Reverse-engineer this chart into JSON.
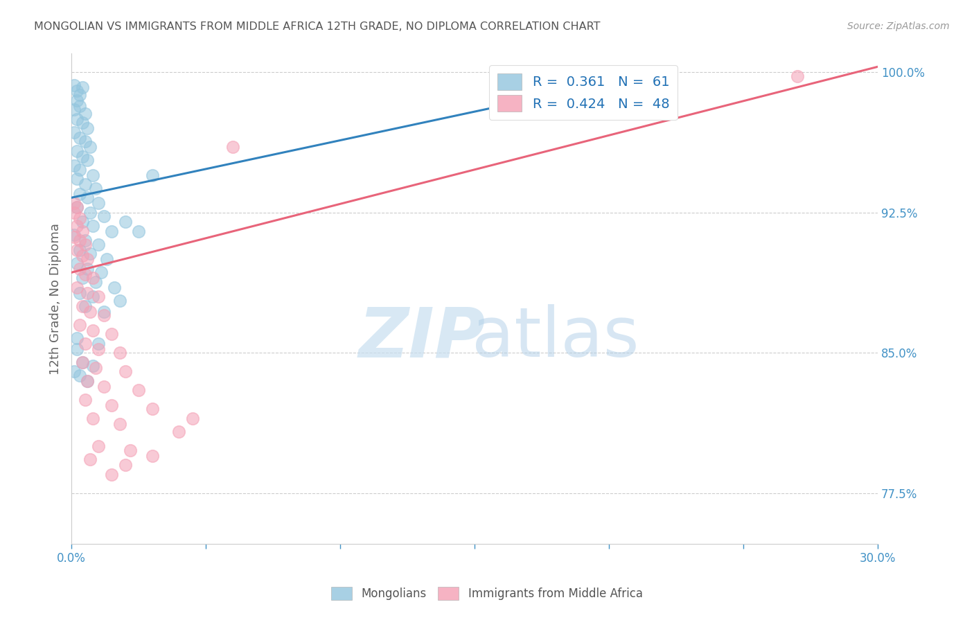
{
  "title": "MONGOLIAN VS IMMIGRANTS FROM MIDDLE AFRICA 12TH GRADE, NO DIPLOMA CORRELATION CHART",
  "source": "Source: ZipAtlas.com",
  "ylabel": "12th Grade, No Diploma",
  "blue_color": "#92c5de",
  "pink_color": "#f4a0b5",
  "blue_line_color": "#3182bd",
  "pink_line_color": "#e8647a",
  "title_color": "#555555",
  "source_color": "#999999",
  "axis_color": "#cccccc",
  "right_label_color": "#4292c6",
  "legend_text_color": "#2171b5",
  "blue_line": [
    [
      0.0,
      0.933
    ],
    [
      0.225,
      1.002
    ]
  ],
  "pink_line": [
    [
      0.0,
      0.893
    ],
    [
      0.3,
      1.003
    ]
  ],
  "blue_scatter": [
    [
      0.001,
      0.993
    ],
    [
      0.002,
      0.99
    ],
    [
      0.003,
      0.988
    ],
    [
      0.004,
      0.992
    ],
    [
      0.002,
      0.985
    ],
    [
      0.003,
      0.982
    ],
    [
      0.001,
      0.98
    ],
    [
      0.005,
      0.978
    ],
    [
      0.002,
      0.975
    ],
    [
      0.004,
      0.973
    ],
    [
      0.006,
      0.97
    ],
    [
      0.001,
      0.968
    ],
    [
      0.003,
      0.965
    ],
    [
      0.005,
      0.963
    ],
    [
      0.007,
      0.96
    ],
    [
      0.002,
      0.958
    ],
    [
      0.004,
      0.955
    ],
    [
      0.006,
      0.953
    ],
    [
      0.001,
      0.95
    ],
    [
      0.003,
      0.948
    ],
    [
      0.008,
      0.945
    ],
    [
      0.002,
      0.943
    ],
    [
      0.005,
      0.94
    ],
    [
      0.009,
      0.938
    ],
    [
      0.003,
      0.935
    ],
    [
      0.006,
      0.933
    ],
    [
      0.01,
      0.93
    ],
    [
      0.002,
      0.928
    ],
    [
      0.007,
      0.925
    ],
    [
      0.012,
      0.923
    ],
    [
      0.004,
      0.92
    ],
    [
      0.008,
      0.918
    ],
    [
      0.015,
      0.915
    ],
    [
      0.001,
      0.913
    ],
    [
      0.005,
      0.91
    ],
    [
      0.01,
      0.908
    ],
    [
      0.003,
      0.905
    ],
    [
      0.007,
      0.903
    ],
    [
      0.013,
      0.9
    ],
    [
      0.002,
      0.898
    ],
    [
      0.006,
      0.895
    ],
    [
      0.011,
      0.893
    ],
    [
      0.004,
      0.89
    ],
    [
      0.009,
      0.888
    ],
    [
      0.016,
      0.885
    ],
    [
      0.003,
      0.882
    ],
    [
      0.008,
      0.88
    ],
    [
      0.018,
      0.878
    ],
    [
      0.005,
      0.875
    ],
    [
      0.012,
      0.872
    ],
    [
      0.002,
      0.858
    ],
    [
      0.01,
      0.855
    ],
    [
      0.004,
      0.845
    ],
    [
      0.008,
      0.843
    ],
    [
      0.001,
      0.84
    ],
    [
      0.003,
      0.838
    ],
    [
      0.006,
      0.835
    ],
    [
      0.002,
      0.852
    ],
    [
      0.02,
      0.92
    ],
    [
      0.025,
      0.915
    ],
    [
      0.03,
      0.945
    ]
  ],
  "pink_scatter": [
    [
      0.001,
      0.93
    ],
    [
      0.002,
      0.928
    ],
    [
      0.001,
      0.925
    ],
    [
      0.003,
      0.922
    ],
    [
      0.002,
      0.918
    ],
    [
      0.004,
      0.915
    ],
    [
      0.001,
      0.912
    ],
    [
      0.003,
      0.91
    ],
    [
      0.005,
      0.908
    ],
    [
      0.002,
      0.905
    ],
    [
      0.004,
      0.902
    ],
    [
      0.006,
      0.9
    ],
    [
      0.003,
      0.895
    ],
    [
      0.005,
      0.892
    ],
    [
      0.008,
      0.89
    ],
    [
      0.002,
      0.885
    ],
    [
      0.006,
      0.882
    ],
    [
      0.01,
      0.88
    ],
    [
      0.004,
      0.875
    ],
    [
      0.007,
      0.872
    ],
    [
      0.012,
      0.87
    ],
    [
      0.003,
      0.865
    ],
    [
      0.008,
      0.862
    ],
    [
      0.015,
      0.86
    ],
    [
      0.005,
      0.855
    ],
    [
      0.01,
      0.852
    ],
    [
      0.018,
      0.85
    ],
    [
      0.004,
      0.845
    ],
    [
      0.009,
      0.842
    ],
    [
      0.02,
      0.84
    ],
    [
      0.006,
      0.835
    ],
    [
      0.012,
      0.832
    ],
    [
      0.025,
      0.83
    ],
    [
      0.005,
      0.825
    ],
    [
      0.015,
      0.822
    ],
    [
      0.03,
      0.82
    ],
    [
      0.008,
      0.815
    ],
    [
      0.018,
      0.812
    ],
    [
      0.01,
      0.8
    ],
    [
      0.022,
      0.798
    ],
    [
      0.007,
      0.793
    ],
    [
      0.02,
      0.79
    ],
    [
      0.015,
      0.785
    ],
    [
      0.04,
      0.808
    ],
    [
      0.045,
      0.815
    ],
    [
      0.03,
      0.795
    ],
    [
      0.27,
      0.998
    ],
    [
      0.06,
      0.96
    ]
  ],
  "xlim": [
    0,
    0.3
  ],
  "ylim": [
    0.748,
    1.01
  ],
  "yticks": [
    0.775,
    0.85,
    0.925,
    1.0
  ],
  "ytick_labels": [
    "77.5%",
    "85.0%",
    "92.5%",
    "100.0%"
  ],
  "xticks": [
    0.0,
    0.05,
    0.1,
    0.15,
    0.2,
    0.25,
    0.3
  ],
  "xtick_labels": [
    "0.0%",
    "",
    "",
    "",
    "",
    "",
    "30.0%"
  ]
}
